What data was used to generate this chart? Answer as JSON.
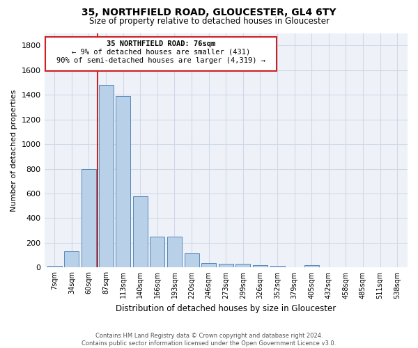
{
  "title": "35, NORTHFIELD ROAD, GLOUCESTER, GL4 6TY",
  "subtitle": "Size of property relative to detached houses in Gloucester",
  "xlabel": "Distribution of detached houses by size in Gloucester",
  "ylabel": "Number of detached properties",
  "categories": [
    "7sqm",
    "34sqm",
    "60sqm",
    "87sqm",
    "113sqm",
    "140sqm",
    "166sqm",
    "193sqm",
    "220sqm",
    "246sqm",
    "273sqm",
    "299sqm",
    "326sqm",
    "352sqm",
    "379sqm",
    "405sqm",
    "432sqm",
    "458sqm",
    "485sqm",
    "511sqm",
    "538sqm"
  ],
  "values": [
    15,
    130,
    795,
    1480,
    1390,
    575,
    250,
    250,
    115,
    35,
    30,
    30,
    20,
    15,
    0,
    20,
    0,
    0,
    0,
    0,
    0
  ],
  "bar_color": "#b8d0e8",
  "bar_edge_color": "#5588bb",
  "bar_width": 0.85,
  "ylim": [
    0,
    1900
  ],
  "yticks": [
    0,
    200,
    400,
    600,
    800,
    1000,
    1200,
    1400,
    1600,
    1800
  ],
  "vline_x": 2.5,
  "vline_color": "#cc2222",
  "annotation_box_color": "#cc2222",
  "annotation_text_line1": "35 NORTHFIELD ROAD: 76sqm",
  "annotation_text_line2": "← 9% of detached houses are smaller (431)",
  "annotation_text_line3": "90% of semi-detached houses are larger (4,319) →",
  "footer_line1": "Contains HM Land Registry data © Crown copyright and database right 2024.",
  "footer_line2": "Contains public sector information licensed under the Open Government Licence v3.0.",
  "grid_color": "#d0d8e8",
  "background_color": "#ffffff",
  "plot_bg_color": "#eef2f8"
}
